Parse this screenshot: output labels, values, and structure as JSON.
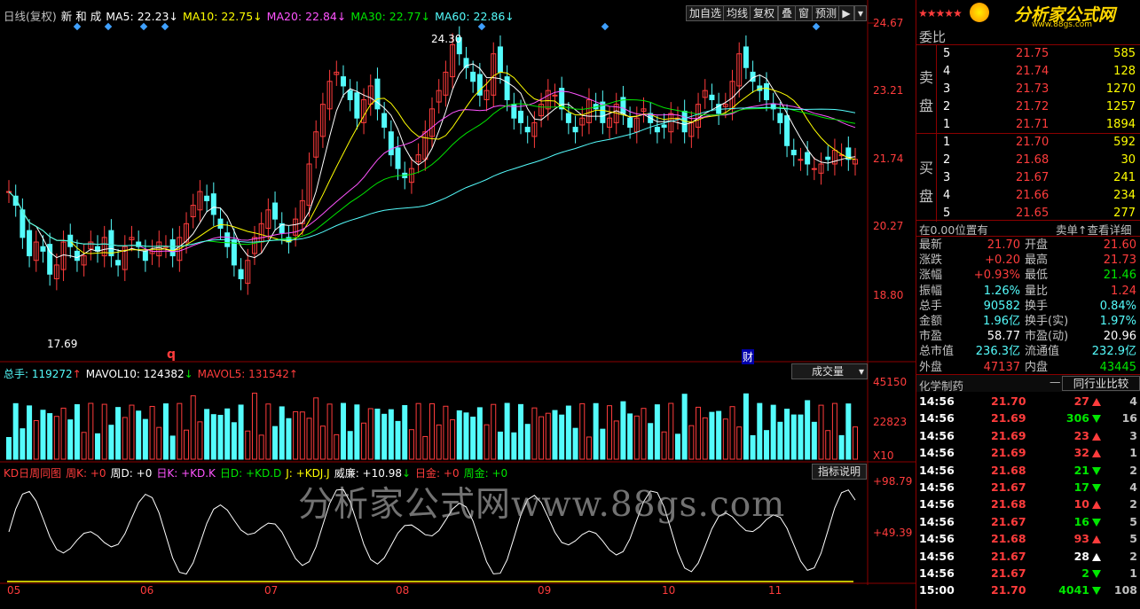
{
  "header": {
    "title": "日线(复权)",
    "stock_name": "新 和 成",
    "ma5": "MA5: 22.23",
    "ma5_arrow": "↓",
    "ma10": "MA10: 22.75",
    "ma10_arrow": "↓",
    "ma20": "MA20: 22.84",
    "ma20_arrow": "↓",
    "ma30": "MA30: 22.77",
    "ma30_arrow": "↓",
    "ma60": "MA60: 22.86",
    "ma60_arrow": "↓"
  },
  "toolbar": {
    "add_watch": "加自选",
    "avg_line": "均线",
    "restore": "复权",
    "overlay": "叠",
    "window": "窗",
    "forecast": "预测"
  },
  "price_axis": [
    "24.67",
    "23.21",
    "21.74",
    "20.27",
    "18.80"
  ],
  "annotations": {
    "high": "24.30",
    "low": "17.69",
    "q_mark": "q",
    "cai_mark": "财"
  },
  "x_axis_months": [
    "05",
    "06",
    "07",
    "08",
    "09",
    "10",
    "11"
  ],
  "volume_header": {
    "total": "总手: 119272",
    "total_arrow": "↑",
    "mavol10": "MAVOL10: 124382",
    "mavol10_arrow": "↓",
    "mavol5": "MAVOL5: 131542",
    "mavol5_arrow": "↑",
    "selector": "成交量"
  },
  "volume_axis": [
    "45150",
    "22823",
    "X10"
  ],
  "indicator_header": {
    "name": "KD日周同图",
    "zk": "周K: +0",
    "zd": "周D: +0",
    "rk": "日K: +KD.K",
    "rd": "日D: +KD.D",
    "j": "J: +KDJ.J",
    "wl": "威廉: +10.98",
    "wl_arrow": "↓",
    "rj": "日金: +0",
    "zj": "周金: +0",
    "help": "指标说明"
  },
  "indicator_axis": [
    "+98.79",
    "+49.39"
  ],
  "watermark": "分析家公式网www.88gs.com",
  "logo": {
    "brand": "分析家公式网",
    "url": "www.88gs.com"
  },
  "order_book": {
    "header_label": "委比",
    "sell_label": [
      "卖",
      "盘"
    ],
    "buy_label": [
      "买",
      "盘"
    ],
    "sell": [
      {
        "level": "5",
        "price": "21.75",
        "vol": "585"
      },
      {
        "level": "4",
        "price": "21.74",
        "vol": "128"
      },
      {
        "level": "3",
        "price": "21.73",
        "vol": "1270"
      },
      {
        "level": "2",
        "price": "21.72",
        "vol": "1257"
      },
      {
        "level": "1",
        "price": "21.71",
        "vol": "1894"
      }
    ],
    "buy": [
      {
        "level": "1",
        "price": "21.70",
        "vol": "592"
      },
      {
        "level": "2",
        "price": "21.68",
        "vol": "30"
      },
      {
        "level": "3",
        "price": "21.67",
        "vol": "241"
      },
      {
        "level": "4",
        "price": "21.66",
        "vol": "234"
      },
      {
        "level": "5",
        "price": "21.65",
        "vol": "277"
      }
    ],
    "position_note": "在0.00位置有",
    "detail_link": "卖单↑查看详细"
  },
  "stats": [
    {
      "l1": "最新",
      "v1": "21.70",
      "c1": "red",
      "l2": "开盘",
      "v2": "21.60",
      "c2": "red"
    },
    {
      "l1": "涨跌",
      "v1": "+0.20",
      "c1": "red",
      "l2": "最高",
      "v2": "21.73",
      "c2": "red"
    },
    {
      "l1": "涨幅",
      "v1": "+0.93%",
      "c1": "red",
      "l2": "最低",
      "v2": "21.46",
      "c2": "green"
    },
    {
      "l1": "振幅",
      "v1": "1.26%",
      "c1": "cyan",
      "l2": "量比",
      "v2": "1.24",
      "c2": "red"
    },
    {
      "l1": "总手",
      "v1": "90582",
      "c1": "cyan",
      "l2": "换手",
      "v2": "0.84%",
      "c2": "cyan"
    },
    {
      "l1": "金额",
      "v1": "1.96亿",
      "c1": "cyan",
      "l2": "换手(实)",
      "v2": "1.97%",
      "c2": "cyan"
    },
    {
      "l1": "市盈",
      "v1": "58.77",
      "c1": "white",
      "l2": "市盈(动)",
      "v2": "20.96",
      "c2": "white"
    },
    {
      "l1": "总市值",
      "v1": "236.3亿",
      "c1": "cyan",
      "l2": "流通值",
      "v2": "232.9亿",
      "c2": "cyan"
    },
    {
      "l1": "外盘",
      "v1": "47137",
      "c1": "red",
      "l2": "内盘",
      "v2": "43445",
      "c2": "green"
    }
  ],
  "industry": {
    "name": "化学制药",
    "dash": "—",
    "compare": "同行业比较"
  },
  "ticks": [
    {
      "time": "14:56",
      "price": "21.70",
      "vol": "27",
      "dir": "up",
      "n": "4"
    },
    {
      "time": "14:56",
      "price": "21.69",
      "vol": "306",
      "dir": "dn",
      "n": "16"
    },
    {
      "time": "14:56",
      "price": "21.69",
      "vol": "23",
      "dir": "up",
      "n": "3"
    },
    {
      "time": "14:56",
      "price": "21.69",
      "vol": "32",
      "dir": "up",
      "n": "1"
    },
    {
      "time": "14:56",
      "price": "21.68",
      "vol": "21",
      "dir": "dn",
      "n": "2"
    },
    {
      "time": "14:56",
      "price": "21.67",
      "vol": "17",
      "dir": "dn",
      "n": "4"
    },
    {
      "time": "14:56",
      "price": "21.68",
      "vol": "10",
      "dir": "up",
      "n": "2"
    },
    {
      "time": "14:56",
      "price": "21.67",
      "vol": "16",
      "dir": "dn",
      "n": "5"
    },
    {
      "time": "14:56",
      "price": "21.68",
      "vol": "93",
      "dir": "up",
      "n": "5"
    },
    {
      "time": "14:56",
      "price": "21.67",
      "vol": "28",
      "dir": "upw",
      "n": "2"
    },
    {
      "time": "14:56",
      "price": "21.67",
      "vol": "2",
      "dir": "dn",
      "n": "1"
    },
    {
      "time": "15:00",
      "price": "21.70",
      "vol": "4041",
      "dir": "dn",
      "n": "108"
    }
  ]
}
